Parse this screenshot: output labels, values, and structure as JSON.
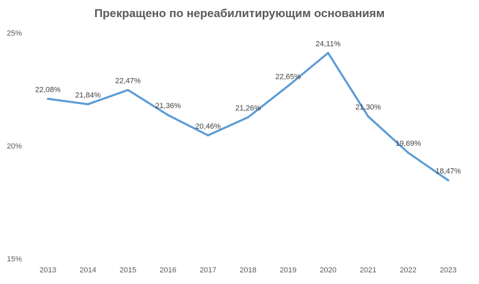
{
  "chart_data": {
    "type": "line",
    "title": "Прекращено по нереабилитирующим основаниям",
    "categories": [
      "2013",
      "2014",
      "2015",
      "2016",
      "2017",
      "2018",
      "2019",
      "2020",
      "2021",
      "2022",
      "2023"
    ],
    "series": [
      {
        "values": [
          22.08,
          21.84,
          22.47,
          21.36,
          20.46,
          21.26,
          22.65,
          24.11,
          21.3,
          19.69,
          18.47
        ],
        "labels": [
          "22,08%",
          "21,84%",
          "22,47%",
          "21,36%",
          "20,46%",
          "21,26%",
          "22,65%",
          "24,11%",
          "21,30%",
          "19,69%",
          "18,47%"
        ],
        "color": "#5B9BD5"
      }
    ],
    "ylim": [
      15,
      25
    ],
    "y_ticks": [
      15,
      20,
      25
    ],
    "y_tick_labels": [
      "15%",
      "20%",
      "25%"
    ],
    "grid": false,
    "legend": "none",
    "xlabel": "",
    "ylabel": ""
  }
}
